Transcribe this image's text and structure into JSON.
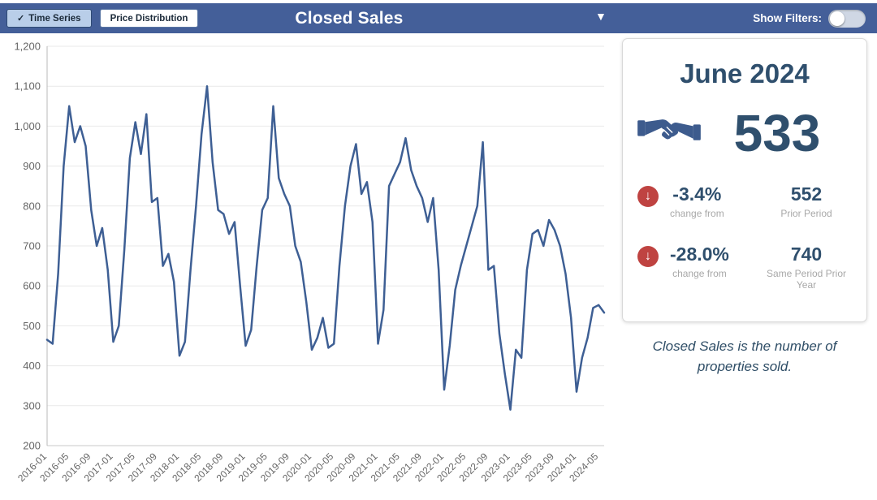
{
  "icons": {
    "check": "✓",
    "chevron_down": "▼",
    "down_arrow": "↓"
  },
  "theme": {
    "header_bg": "#445f99",
    "accent": "#2f4f6d",
    "negative": "#bf4341",
    "line": "#3e5f94"
  },
  "header": {
    "tabs": [
      {
        "label": "Time Series",
        "active": true
      },
      {
        "label": "Price Distribution",
        "active": false
      }
    ],
    "title": "Closed Sales",
    "show_filters_label": "Show Filters:",
    "filters_on": false
  },
  "summary_card": {
    "period": "June 2024",
    "icon": "handshake-icon",
    "value": "533",
    "comparisons": [
      {
        "pct": "-3.4%",
        "caption": "change from",
        "ref_value": "552",
        "ref_label": "Prior Period"
      },
      {
        "pct": "-28.0%",
        "caption": "change from",
        "ref_value": "740",
        "ref_label": "Same Period Prior Year"
      }
    ]
  },
  "description": "Closed Sales is the number of properties sold.",
  "chart_data": {
    "type": "line",
    "title": "Closed Sales",
    "ylim": [
      200,
      1200
    ],
    "y_tick_step": 100,
    "x_tick_every": 4,
    "grid": true,
    "line_color": "#3e5f94",
    "x": [
      "2016-01",
      "2016-02",
      "2016-03",
      "2016-04",
      "2016-05",
      "2016-06",
      "2016-07",
      "2016-08",
      "2016-09",
      "2016-10",
      "2016-11",
      "2016-12",
      "2017-01",
      "2017-02",
      "2017-03",
      "2017-04",
      "2017-05",
      "2017-06",
      "2017-07",
      "2017-08",
      "2017-09",
      "2017-10",
      "2017-11",
      "2017-12",
      "2018-01",
      "2018-02",
      "2018-03",
      "2018-04",
      "2018-05",
      "2018-06",
      "2018-07",
      "2018-08",
      "2018-09",
      "2018-10",
      "2018-11",
      "2018-12",
      "2019-01",
      "2019-02",
      "2019-03",
      "2019-04",
      "2019-05",
      "2019-06",
      "2019-07",
      "2019-08",
      "2019-09",
      "2019-10",
      "2019-11",
      "2019-12",
      "2020-01",
      "2020-02",
      "2020-03",
      "2020-04",
      "2020-05",
      "2020-06",
      "2020-07",
      "2020-08",
      "2020-09",
      "2020-10",
      "2020-11",
      "2020-12",
      "2021-01",
      "2021-02",
      "2021-03",
      "2021-04",
      "2021-05",
      "2021-06",
      "2021-07",
      "2021-08",
      "2021-09",
      "2021-10",
      "2021-11",
      "2021-12",
      "2022-01",
      "2022-02",
      "2022-03",
      "2022-04",
      "2022-05",
      "2022-06",
      "2022-07",
      "2022-08",
      "2022-09",
      "2022-10",
      "2022-11",
      "2022-12",
      "2023-01",
      "2023-02",
      "2023-03",
      "2023-04",
      "2023-05",
      "2023-06",
      "2023-07",
      "2023-08",
      "2023-09",
      "2023-10",
      "2023-11",
      "2023-12",
      "2024-01",
      "2024-02",
      "2024-03",
      "2024-04",
      "2024-05",
      "2024-06"
    ],
    "values": [
      465,
      455,
      630,
      900,
      1050,
      960,
      1000,
      950,
      790,
      700,
      745,
      640,
      460,
      500,
      690,
      920,
      1010,
      930,
      1030,
      810,
      820,
      650,
      680,
      610,
      425,
      460,
      640,
      800,
      980,
      1100,
      910,
      790,
      780,
      730,
      760,
      600,
      450,
      490,
      650,
      790,
      820,
      1050,
      870,
      830,
      800,
      700,
      660,
      560,
      440,
      470,
      520,
      445,
      455,
      650,
      800,
      900,
      955,
      830,
      860,
      760,
      455,
      540,
      850,
      880,
      910,
      970,
      890,
      850,
      820,
      760,
      820,
      640,
      340,
      450,
      590,
      650,
      700,
      750,
      800,
      960,
      640,
      650,
      480,
      380,
      290,
      440,
      420,
      640,
      730,
      740,
      700,
      765,
      740,
      700,
      630,
      520,
      335,
      420,
      470,
      545,
      552,
      533
    ]
  }
}
